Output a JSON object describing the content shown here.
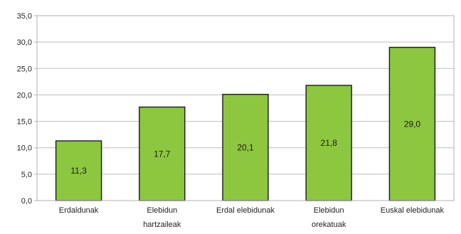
{
  "chart_data": {
    "type": "bar",
    "categories": [
      [
        "Erdaldunak"
      ],
      [
        "Elebidun",
        "hartzaileak"
      ],
      [
        "Erdal elebidunak"
      ],
      [
        "Elebidun",
        "orekatuak"
      ],
      [
        "Euskal elebidunak"
      ]
    ],
    "values": [
      11.3,
      17.7,
      20.1,
      21.8,
      29.0
    ],
    "data_labels": [
      "11,3",
      "17,7",
      "20,1",
      "21,8",
      "29,0"
    ],
    "yticks": [
      0,
      5,
      10,
      15,
      20,
      25,
      30,
      35
    ],
    "ytick_labels": [
      "0,0",
      "5,0",
      "10,0",
      "15,0",
      "20,0",
      "25,0",
      "30,0",
      "35,0"
    ],
    "ylim": [
      0,
      35
    ],
    "grid": true,
    "colors": {
      "bar_fill": "#8dc63f",
      "bar_stroke": "#1a1a1a",
      "gridline": "#bdbdbd",
      "frame": "#b0b0b0"
    }
  }
}
